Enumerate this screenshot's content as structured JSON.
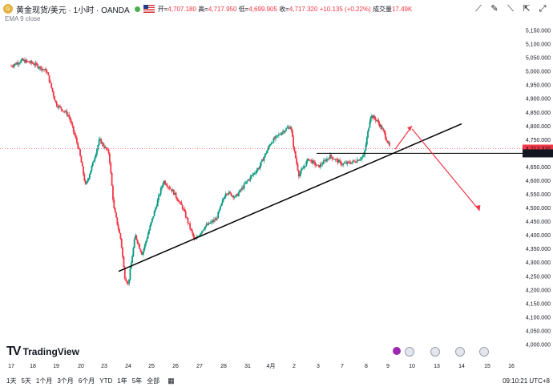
{
  "header": {
    "symbol_icon": "gold-coin-icon",
    "symbol": "黄金现货/美元 · 1小时 · OANDA",
    "ohlc": [
      {
        "label": "开=",
        "value": "4,707.180"
      },
      {
        "label": "高=",
        "value": "4,717.950"
      },
      {
        "label": "低=",
        "value": "4,699.905"
      },
      {
        "label": "收=",
        "value": "4,717.320"
      },
      {
        "label": "",
        "value": "+10.135 (+0.22%)"
      },
      {
        "label": "成交量",
        "value": "17.49K"
      }
    ],
    "tools": [
      "ruler-icon",
      "pencil-icon",
      "trend-tool-icon",
      "cursor-icon",
      "fullscreen-icon"
    ]
  },
  "indicator_label": "EMA 9 close",
  "colors": {
    "up": "#089981",
    "down": "#f23645",
    "trendline": "#000000",
    "arrow": "#f23645",
    "bg": "#ffffff"
  },
  "chart_data": {
    "type": "candlestick",
    "title": "黄金现货/美元 · 1小时 · OANDA",
    "ylim": [
      3980,
      5200
    ],
    "y_ticks": [
      5150,
      5100,
      5050,
      5000,
      4950,
      4900,
      4850,
      4800,
      4750,
      4700,
      4650,
      4600,
      4550,
      4500,
      4450,
      4400,
      4350,
      4300,
      4250,
      4200,
      4150,
      4100,
      4050,
      4000
    ],
    "x_labels": [
      "17",
      "18",
      "19",
      "20",
      "23",
      "24",
      "25",
      "26",
      "27",
      "28",
      "31",
      "4月",
      "2",
      "3",
      "7",
      "8",
      "9",
      "10",
      "13",
      "14",
      "15",
      "16"
    ],
    "current_price": "4,717.320",
    "horizontal_level": "4,699.890",
    "close_path": [
      {
        "d": 0.0,
        "p": 5020
      },
      {
        "d": 0.5,
        "p": 5040
      },
      {
        "d": 1.0,
        "p": 5030
      },
      {
        "d": 1.6,
        "p": 5000
      },
      {
        "d": 2.0,
        "p": 4880
      },
      {
        "d": 2.5,
        "p": 4840
      },
      {
        "d": 2.9,
        "p": 4720
      },
      {
        "d": 3.2,
        "p": 4580
      },
      {
        "d": 3.5,
        "p": 4660
      },
      {
        "d": 3.8,
        "p": 4750
      },
      {
        "d": 4.2,
        "p": 4700
      },
      {
        "d": 4.4,
        "p": 4500
      },
      {
        "d": 4.7,
        "p": 4380
      },
      {
        "d": 4.85,
        "p": 4250
      },
      {
        "d": 5.0,
        "p": 4220
      },
      {
        "d": 5.3,
        "p": 4400
      },
      {
        "d": 5.6,
        "p": 4330
      },
      {
        "d": 6.0,
        "p": 4450
      },
      {
        "d": 6.5,
        "p": 4600
      },
      {
        "d": 6.9,
        "p": 4560
      },
      {
        "d": 7.3,
        "p": 4500
      },
      {
        "d": 7.8,
        "p": 4380
      },
      {
        "d": 8.2,
        "p": 4430
      },
      {
        "d": 8.7,
        "p": 4460
      },
      {
        "d": 9.1,
        "p": 4560
      },
      {
        "d": 9.5,
        "p": 4540
      },
      {
        "d": 10.0,
        "p": 4600
      },
      {
        "d": 10.5,
        "p": 4650
      },
      {
        "d": 11.0,
        "p": 4740
      },
      {
        "d": 11.5,
        "p": 4780
      },
      {
        "d": 11.85,
        "p": 4800
      },
      {
        "d": 12.0,
        "p": 4710
      },
      {
        "d": 12.2,
        "p": 4620
      },
      {
        "d": 12.6,
        "p": 4680
      },
      {
        "d": 13.0,
        "p": 4650
      },
      {
        "d": 13.5,
        "p": 4690
      },
      {
        "d": 14.0,
        "p": 4660
      },
      {
        "d": 14.5,
        "p": 4670
      },
      {
        "d": 14.9,
        "p": 4690
      },
      {
        "d": 15.2,
        "p": 4840
      },
      {
        "d": 15.5,
        "p": 4820
      },
      {
        "d": 15.8,
        "p": 4780
      },
      {
        "d": 16.1,
        "p": 4717
      }
    ],
    "trendline": [
      {
        "d": 4.6,
        "p": 4268
      },
      {
        "d": 19.0,
        "p": 4808
      }
    ],
    "arrow_up": [
      {
        "d": 16.3,
        "p": 4715
      },
      {
        "d": 17.0,
        "p": 4800
      }
    ],
    "arrow_down": [
      {
        "d": 17.0,
        "p": 4790
      },
      {
        "d": 19.7,
        "p": 4490
      }
    ]
  },
  "bottom_bar": {
    "timeframes": [
      "1天",
      "5天",
      "1个月",
      "3个月",
      "6个月",
      "YTD",
      "1年",
      "5年",
      "全部"
    ],
    "calendar_icon": "calendar-icon",
    "time": "09:10:21 UTC+8"
  },
  "brand": "TradingView",
  "event_icons": [
    "lightning-event-icon",
    "us-flag-event-icon",
    "us-flag-event-icon",
    "us-flag-event-icon",
    "us-flag-event-icon"
  ]
}
